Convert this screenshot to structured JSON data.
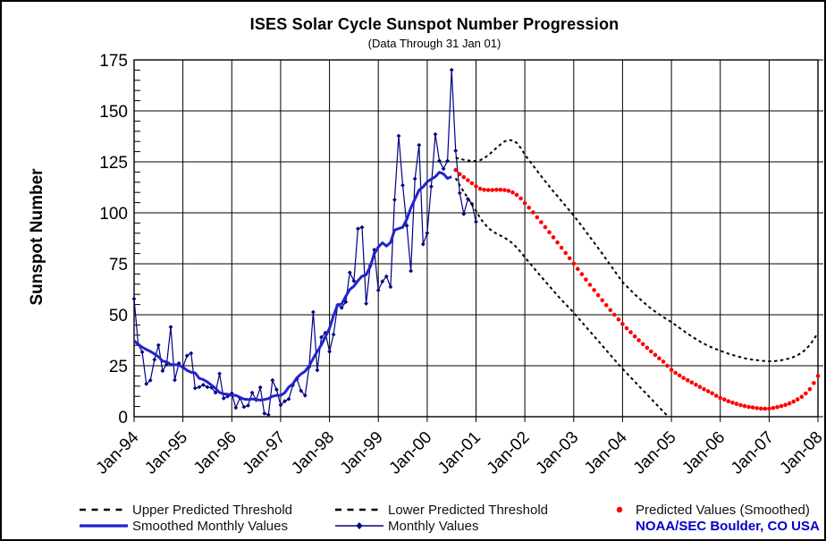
{
  "title": "ISES Solar Cycle Sunspot Number Progression",
  "subtitle": "(Data Through 31 Jan 01)",
  "y_axis": {
    "label": "Sunspot Number",
    "ticks": [
      175,
      150,
      125,
      100,
      75,
      50,
      25,
      0
    ]
  },
  "x_axis": {
    "tick_labels": [
      "Jan-94",
      "Jan-95",
      "Jan-96",
      "Jan-97",
      "Jan-98",
      "Jan-99",
      "Jan-00",
      "Jan-01",
      "Jan-02",
      "Jan-03",
      "Jan-04",
      "Jan-05",
      "Jan-06",
      "Jan-07",
      "Jan-08"
    ]
  },
  "legend": {
    "upper": {
      "label": "Upper Predicted Threshold",
      "marker": "black-dashed-line"
    },
    "lower": {
      "label": "Lower Predicted Threshold",
      "marker": "black-dashed-line"
    },
    "predicted": {
      "label": "Predicted Values (Smoothed)",
      "marker": "red-dot"
    },
    "smoothed": {
      "label": "Smoothed Monthly Values",
      "marker": "blue-solid-line"
    },
    "monthly": {
      "label": "Monthly Values",
      "marker": "blue-line-with-diamond"
    },
    "credit": "NOAA/SEC Boulder, CO USA"
  },
  "colors": {
    "monthly_blue": "#000080",
    "smoothed_blue": "#2222cc",
    "predicted_red": "#ff0000",
    "threshold_black": "#000000",
    "credit_blue": "#0000cc",
    "grid": "#000000"
  },
  "chart_data": {
    "type": "line",
    "title": "ISES Solar Cycle Sunspot Number Progression",
    "subtitle": "(Data Through 31 Jan 01)",
    "xlabel": "",
    "ylabel": "Sunspot Number",
    "ylim": [
      0,
      175
    ],
    "x_start_label": "Jan-94",
    "x_end_label": "Jan-08",
    "x_months_total": 168,
    "grid": true,
    "legend_position": "bottom",
    "series": [
      {
        "name": "Monthly Values",
        "style": "line-with-diamond-markers",
        "color": "#000080",
        "start_month_index": 0,
        "values": [
          57.8,
          35.5,
          31.7,
          16.1,
          17.8,
          28.0,
          35.1,
          22.5,
          25.7,
          44.0,
          18.0,
          26.2,
          24.2,
          29.9,
          31.1,
          14.0,
          14.5,
          15.6,
          14.5,
          14.3,
          11.8,
          21.1,
          9.0,
          10.0,
          11.5,
          4.4,
          9.2,
          4.8,
          5.5,
          11.8,
          8.2,
          14.4,
          1.6,
          0.9,
          17.9,
          13.3,
          5.7,
          7.6,
          8.7,
          15.5,
          18.5,
          12.7,
          10.4,
          24.4,
          51.3,
          22.8,
          39.0,
          41.2,
          31.9,
          40.3,
          54.8,
          53.4,
          56.3,
          70.7,
          66.6,
          92.2,
          92.9,
          55.5,
          74.0,
          81.9,
          62.0,
          66.3,
          68.8,
          63.7,
          106.4,
          137.7,
          113.5,
          93.7,
          71.5,
          116.7,
          133.2,
          84.6,
          90.1,
          112.9,
          138.5,
          125.5,
          121.6,
          125.5,
          170.1,
          130.5,
          109.7,
          99.4,
          106.8,
          104.4,
          95.6
        ]
      },
      {
        "name": "Smoothed Monthly Values",
        "style": "solid-thick",
        "color": "#2222cc",
        "start_month_index": 0,
        "values": [
          37.3,
          35.5,
          34.1,
          33.0,
          32.0,
          30.8,
          29.4,
          27.3,
          26.9,
          25.6,
          25.5,
          25.3,
          24.3,
          22.7,
          21.8,
          21.5,
          18.8,
          18.2,
          17.0,
          15.5,
          13.9,
          11.9,
          11.2,
          11.0,
          10.5,
          10.5,
          9.5,
          8.6,
          8.4,
          8.7,
          8.4,
          8.1,
          8.4,
          8.9,
          10.0,
          10.5,
          10.4,
          11.7,
          14.5,
          16.1,
          19.1,
          20.9,
          22.3,
          24.9,
          28.6,
          32.0,
          35.2,
          39.2,
          43.3,
          49.6,
          54.9,
          55.2,
          59.1,
          62.4,
          64.0,
          66.7,
          68.9,
          69.6,
          73.6,
          79.9,
          83.2,
          85.3,
          83.7,
          85.5,
          91.5,
          92.3,
          92.9,
          96.9,
          102.4,
          106.8,
          111.2,
          112.7,
          115.2,
          116.5,
          117.7,
          119.9,
          119.1,
          116.9,
          117.7
        ]
      },
      {
        "name": "Upper Predicted Threshold",
        "style": "dashed",
        "color": "#000000",
        "start_month_index": 79,
        "values": [
          127.0,
          126.5,
          126.0,
          125.7,
          125.5,
          125.4,
          125.8,
          126.8,
          128.3,
          130.0,
          131.8,
          133.5,
          135.0,
          135.7,
          135.5,
          134.3,
          131.8,
          128.5,
          125.8,
          123.2,
          120.6,
          118.0,
          115.5,
          113.0,
          110.5,
          108.2,
          105.8,
          103.4,
          101.0,
          98.6,
          96.1,
          93.5,
          90.8,
          88.1,
          85.4,
          82.7,
          80.0,
          77.2,
          74.4,
          71.6,
          68.8,
          66.0,
          64.0,
          62.0,
          60.0,
          58.2,
          56.4,
          54.7,
          53.0,
          51.6,
          50.2,
          48.9,
          47.6,
          46.4,
          45.0,
          43.5,
          42.1,
          40.7,
          39.4,
          38.1,
          36.9,
          35.8,
          34.8,
          33.9,
          33.1,
          32.4,
          31.6,
          30.9,
          30.3,
          29.7,
          29.2,
          28.7,
          28.3,
          28.0,
          27.7,
          27.5,
          27.3,
          27.2,
          27.2,
          27.4,
          27.7,
          28.1,
          28.6,
          29.3,
          30.2,
          31.4,
          33.0,
          35.2,
          38.0,
          41.2
        ]
      },
      {
        "name": "Lower Predicted Threshold",
        "style": "dashed",
        "color": "#000000",
        "start_month_index": 79,
        "values": [
          117.0,
          113.5,
          110.3,
          107.2,
          104.1,
          101.0,
          97.5,
          94.8,
          92.6,
          91.0,
          89.8,
          88.8,
          87.8,
          86.5,
          85.0,
          83.0,
          80.7,
          78.2,
          75.8,
          73.4,
          71.0,
          68.7,
          66.4,
          64.1,
          61.8,
          59.5,
          57.3,
          55.2,
          53.1,
          51.0,
          48.7,
          46.4,
          44.1,
          41.8,
          39.5,
          37.2,
          34.9,
          32.6,
          30.3,
          28.0,
          25.7,
          23.5,
          21.4,
          19.3,
          17.2,
          15.1,
          13.0,
          10.9,
          8.8,
          6.7,
          4.6,
          2.5,
          0.5
        ]
      },
      {
        "name": "Predicted Values (Smoothed)",
        "style": "dots",
        "color": "#ff0000",
        "start_month_index": 79,
        "values": [
          121.0,
          119.0,
          117.5,
          116.0,
          114.5,
          113.0,
          111.8,
          111.3,
          111.2,
          111.2,
          111.3,
          111.3,
          111.2,
          110.8,
          110.0,
          108.8,
          107.0,
          104.8,
          102.5,
          100.2,
          97.8,
          95.4,
          93.0,
          90.5,
          88.0,
          85.5,
          82.9,
          80.3,
          77.7,
          75.1,
          72.5,
          69.9,
          67.3,
          64.7,
          62.1,
          59.6,
          57.1,
          54.7,
          52.3,
          50.0,
          47.7,
          45.5,
          43.4,
          41.4,
          39.4,
          37.5,
          35.6,
          33.8,
          32.0,
          30.3,
          28.6,
          27.0,
          25.0,
          23.0,
          21.5,
          20.2,
          19.0,
          17.9,
          16.8,
          15.7,
          14.6,
          13.5,
          12.5,
          11.5,
          10.3,
          9.2,
          8.4,
          7.6,
          6.9,
          6.3,
          5.7,
          5.2,
          4.8,
          4.5,
          4.2,
          4.0,
          3.9,
          4.0,
          4.3,
          4.7,
          5.2,
          5.8,
          6.5,
          7.4,
          8.5,
          9.8,
          11.4,
          13.5,
          16.5,
          20.0
        ]
      }
    ]
  }
}
